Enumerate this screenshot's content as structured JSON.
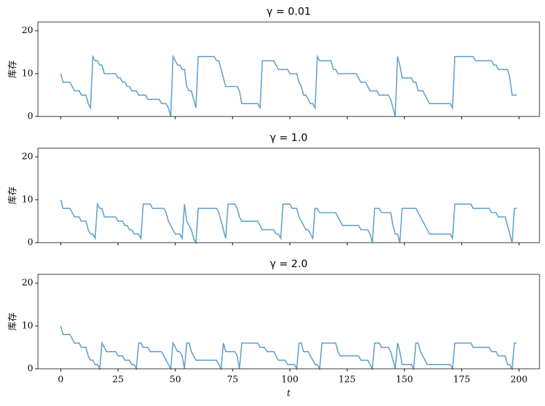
{
  "chart_data": [
    {
      "type": "line",
      "title": "γ = 0.01",
      "ylabel": "库存",
      "color": "#5f9fc9",
      "x": [
        0,
        1,
        2,
        3,
        4,
        5,
        6,
        7,
        8,
        9,
        10,
        11,
        12,
        13,
        14,
        15,
        16,
        17,
        18,
        19,
        20,
        21,
        22,
        23,
        24,
        25,
        26,
        27,
        28,
        29,
        30,
        31,
        32,
        33,
        34,
        35,
        36,
        37,
        38,
        39,
        40,
        41,
        42,
        43,
        44,
        45,
        46,
        47,
        48,
        49,
        50,
        51,
        52,
        53,
        54,
        55,
        56,
        57,
        58,
        59,
        60,
        61,
        62,
        63,
        64,
        65,
        66,
        67,
        68,
        69,
        70,
        71,
        72,
        73,
        74,
        75,
        76,
        77,
        78,
        79,
        80,
        81,
        82,
        83,
        84,
        85,
        86,
        87,
        88,
        89,
        90,
        91,
        92,
        93,
        94,
        95,
        96,
        97,
        98,
        99,
        100,
        101,
        102,
        103,
        104,
        105,
        106,
        107,
        108,
        109,
        110,
        111,
        112,
        113,
        114,
        115,
        116,
        117,
        118,
        119,
        120,
        121,
        122,
        123,
        124,
        125,
        126,
        127,
        128,
        129,
        130,
        131,
        132,
        133,
        134,
        135,
        136,
        137,
        138,
        139,
        140,
        141,
        142,
        143,
        144,
        145,
        146,
        147,
        148,
        149,
        150,
        151,
        152,
        153,
        154,
        155,
        156,
        157,
        158,
        159,
        160,
        161,
        162,
        163,
        164,
        165,
        166,
        167,
        168,
        169,
        170,
        171,
        172,
        173,
        174,
        175,
        176,
        177,
        178,
        179,
        180,
        181,
        182,
        183,
        184,
        185,
        186,
        187,
        188,
        189,
        190,
        191,
        192,
        193,
        194,
        195,
        196,
        197,
        198,
        199
      ],
      "values": [
        10,
        8,
        8,
        8,
        8,
        7,
        6,
        6,
        6,
        5,
        5,
        5,
        3,
        2,
        14,
        13,
        13,
        12,
        12,
        10,
        10,
        10,
        10,
        10,
        10,
        9,
        9,
        8,
        8,
        7,
        7,
        6,
        6,
        6,
        5,
        5,
        5,
        5,
        4,
        4,
        4,
        4,
        4,
        4,
        3,
        3,
        3,
        2,
        0,
        14,
        13,
        12,
        12,
        11,
        11,
        7,
        6,
        6,
        4,
        2,
        14,
        14,
        14,
        14,
        14,
        14,
        14,
        14,
        13,
        13,
        11,
        9,
        7,
        7,
        7,
        7,
        7,
        7,
        6,
        3,
        3,
        3,
        3,
        3,
        3,
        3,
        3,
        2,
        13,
        13,
        13,
        13,
        13,
        13,
        12,
        11,
        11,
        11,
        11,
        11,
        10,
        10,
        10,
        10,
        8,
        7,
        5,
        5,
        4,
        3,
        3,
        2,
        14,
        13,
        13,
        13,
        13,
        13,
        13,
        11,
        11,
        10,
        10,
        10,
        10,
        10,
        10,
        10,
        10,
        10,
        9,
        8,
        8,
        8,
        7,
        6,
        6,
        6,
        6,
        5,
        5,
        5,
        5,
        5,
        4,
        2,
        0,
        14,
        12,
        9,
        9,
        9,
        9,
        9,
        8,
        8,
        6,
        6,
        6,
        5,
        4,
        3,
        3,
        3,
        3,
        3,
        3,
        3,
        3,
        3,
        3,
        2,
        14,
        14,
        14,
        14,
        14,
        14,
        14,
        14,
        14,
        13,
        13,
        13,
        13,
        13,
        13,
        13,
        13,
        12,
        12,
        11,
        11,
        11,
        11,
        11,
        9,
        5,
        5,
        5
      ],
      "ylim": [
        0,
        22.05
      ],
      "yticks": [
        0,
        10,
        20
      ],
      "xlim": [
        -9.95,
        208.95
      ],
      "xticks": [
        0,
        25,
        50,
        75,
        100,
        125,
        150,
        175,
        200
      ]
    },
    {
      "type": "line",
      "title": "γ = 1.0",
      "ylabel": "库存",
      "color": "#5f9fc9",
      "x": [
        0,
        1,
        2,
        3,
        4,
        5,
        6,
        7,
        8,
        9,
        10,
        11,
        12,
        13,
        14,
        15,
        16,
        17,
        18,
        19,
        20,
        21,
        22,
        23,
        24,
        25,
        26,
        27,
        28,
        29,
        30,
        31,
        32,
        33,
        34,
        35,
        36,
        37,
        38,
        39,
        40,
        41,
        42,
        43,
        44,
        45,
        46,
        47,
        48,
        49,
        50,
        51,
        52,
        53,
        54,
        55,
        56,
        57,
        58,
        59,
        60,
        61,
        62,
        63,
        64,
        65,
        66,
        67,
        68,
        69,
        70,
        71,
        72,
        73,
        74,
        75,
        76,
        77,
        78,
        79,
        80,
        81,
        82,
        83,
        84,
        85,
        86,
        87,
        88,
        89,
        90,
        91,
        92,
        93,
        94,
        95,
        96,
        97,
        98,
        99,
        100,
        101,
        102,
        103,
        104,
        105,
        106,
        107,
        108,
        109,
        110,
        111,
        112,
        113,
        114,
        115,
        116,
        117,
        118,
        119,
        120,
        121,
        122,
        123,
        124,
        125,
        126,
        127,
        128,
        129,
        130,
        131,
        132,
        133,
        134,
        135,
        136,
        137,
        138,
        139,
        140,
        141,
        142,
        143,
        144,
        145,
        146,
        147,
        148,
        149,
        150,
        151,
        152,
        153,
        154,
        155,
        156,
        157,
        158,
        159,
        160,
        161,
        162,
        163,
        164,
        165,
        166,
        167,
        168,
        169,
        170,
        171,
        172,
        173,
        174,
        175,
        176,
        177,
        178,
        179,
        180,
        181,
        182,
        183,
        184,
        185,
        186,
        187,
        188,
        189,
        190,
        191,
        192,
        193,
        194,
        195,
        196,
        197,
        198,
        199
      ],
      "values": [
        10,
        8,
        8,
        8,
        8,
        7,
        6,
        6,
        6,
        5,
        5,
        5,
        3,
        2,
        2,
        1,
        9,
        8,
        8,
        6,
        6,
        6,
        6,
        6,
        6,
        5,
        5,
        5,
        4,
        4,
        3,
        3,
        2,
        2,
        2,
        1,
        9,
        9,
        9,
        9,
        8,
        8,
        8,
        8,
        8,
        8,
        7,
        5,
        4,
        3,
        2,
        2,
        2,
        1,
        9,
        5,
        4,
        3,
        1,
        0,
        8,
        8,
        8,
        8,
        8,
        8,
        8,
        8,
        8,
        7,
        5,
        3,
        1,
        9,
        9,
        9,
        9,
        8,
        6,
        5,
        5,
        5,
        5,
        5,
        5,
        5,
        5,
        4,
        3,
        3,
        3,
        3,
        3,
        3,
        2,
        2,
        1,
        9,
        9,
        9,
        9,
        8,
        8,
        8,
        6,
        5,
        4,
        3,
        3,
        2,
        1,
        8,
        8,
        7,
        7,
        7,
        7,
        7,
        7,
        7,
        7,
        6,
        5,
        4,
        4,
        4,
        4,
        4,
        4,
        4,
        4,
        3,
        3,
        3,
        3,
        2,
        0,
        8,
        8,
        8,
        7,
        7,
        7,
        7,
        7,
        4,
        2,
        2,
        0,
        8,
        8,
        8,
        8,
        8,
        8,
        8,
        7,
        6,
        5,
        4,
        3,
        2,
        2,
        2,
        2,
        2,
        2,
        2,
        2,
        2,
        2,
        1,
        9,
        9,
        9,
        9,
        9,
        9,
        9,
        9,
        8,
        8,
        8,
        8,
        8,
        8,
        8,
        8,
        7,
        7,
        7,
        6,
        6,
        6,
        6,
        4,
        2,
        0,
        8,
        8
      ],
      "ylim": [
        0,
        22.05
      ],
      "yticks": [
        0,
        10,
        20
      ],
      "xlim": [
        -9.95,
        208.95
      ],
      "xticks": [
        0,
        25,
        50,
        75,
        100,
        125,
        150,
        175,
        200
      ]
    },
    {
      "type": "line",
      "title": "γ = 2.0",
      "ylabel": "库存",
      "xlabel": "t",
      "color": "#5f9fc9",
      "x": [
        0,
        1,
        2,
        3,
        4,
        5,
        6,
        7,
        8,
        9,
        10,
        11,
        12,
        13,
        14,
        15,
        16,
        17,
        18,
        19,
        20,
        21,
        22,
        23,
        24,
        25,
        26,
        27,
        28,
        29,
        30,
        31,
        32,
        33,
        34,
        35,
        36,
        37,
        38,
        39,
        40,
        41,
        42,
        43,
        44,
        45,
        46,
        47,
        48,
        49,
        50,
        51,
        52,
        53,
        54,
        55,
        56,
        57,
        58,
        59,
        60,
        61,
        62,
        63,
        64,
        65,
        66,
        67,
        68,
        69,
        70,
        71,
        72,
        73,
        74,
        75,
        76,
        77,
        78,
        79,
        80,
        81,
        82,
        83,
        84,
        85,
        86,
        87,
        88,
        89,
        90,
        91,
        92,
        93,
        94,
        95,
        96,
        97,
        98,
        99,
        100,
        101,
        102,
        103,
        104,
        105,
        106,
        107,
        108,
        109,
        110,
        111,
        112,
        113,
        114,
        115,
        116,
        117,
        118,
        119,
        120,
        121,
        122,
        123,
        124,
        125,
        126,
        127,
        128,
        129,
        130,
        131,
        132,
        133,
        134,
        135,
        136,
        137,
        138,
        139,
        140,
        141,
        142,
        143,
        144,
        145,
        146,
        147,
        148,
        149,
        150,
        151,
        152,
        153,
        154,
        155,
        156,
        157,
        158,
        159,
        160,
        161,
        162,
        163,
        164,
        165,
        166,
        167,
        168,
        169,
        170,
        171,
        172,
        173,
        174,
        175,
        176,
        177,
        178,
        179,
        180,
        181,
        182,
        183,
        184,
        185,
        186,
        187,
        188,
        189,
        190,
        191,
        192,
        193,
        194,
        195,
        196,
        197,
        198,
        199
      ],
      "values": [
        10,
        8,
        8,
        8,
        8,
        7,
        6,
        6,
        6,
        5,
        5,
        5,
        3,
        2,
        2,
        1,
        1,
        0,
        6,
        5,
        4,
        4,
        4,
        4,
        4,
        3,
        3,
        3,
        2,
        2,
        2,
        1,
        1,
        0,
        6,
        6,
        5,
        5,
        5,
        4,
        4,
        4,
        4,
        4,
        4,
        3,
        2,
        1,
        0,
        6,
        5,
        4,
        4,
        3,
        0,
        6,
        6,
        4,
        3,
        2,
        2,
        2,
        2,
        2,
        2,
        2,
        2,
        2,
        2,
        1,
        0,
        6,
        4,
        4,
        4,
        4,
        4,
        3,
        0,
        6,
        6,
        6,
        6,
        6,
        6,
        6,
        6,
        5,
        5,
        5,
        4,
        4,
        4,
        4,
        3,
        2,
        2,
        2,
        2,
        1,
        1,
        1,
        1,
        0,
        6,
        6,
        4,
        4,
        4,
        3,
        2,
        1,
        1,
        0,
        6,
        6,
        6,
        6,
        6,
        6,
        6,
        4,
        3,
        3,
        3,
        3,
        3,
        3,
        3,
        3,
        3,
        2,
        2,
        2,
        2,
        1,
        0,
        6,
        6,
        6,
        5,
        5,
        5,
        5,
        4,
        2,
        0,
        6,
        4,
        1,
        1,
        1,
        1,
        1,
        0,
        6,
        6,
        4,
        3,
        2,
        1,
        1,
        1,
        1,
        1,
        1,
        1,
        1,
        1,
        1,
        1,
        0,
        6,
        6,
        6,
        6,
        6,
        6,
        6,
        6,
        5,
        5,
        5,
        5,
        5,
        5,
        5,
        5,
        4,
        4,
        4,
        3,
        3,
        3,
        3,
        1,
        1,
        0,
        6,
        6
      ],
      "ylim": [
        0,
        22.05
      ],
      "yticks": [
        0,
        10,
        20
      ],
      "xlim": [
        -9.95,
        208.95
      ],
      "xticks": [
        0,
        25,
        50,
        75,
        100,
        125,
        150,
        175,
        200
      ]
    }
  ]
}
